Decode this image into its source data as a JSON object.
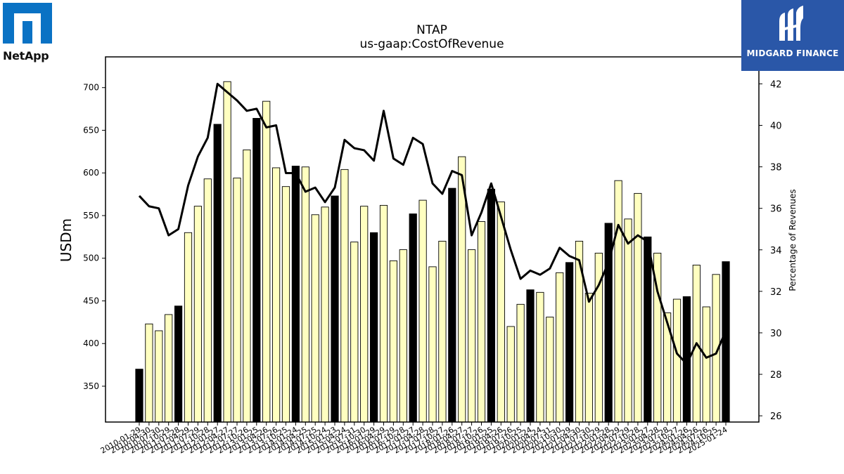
{
  "logos": {
    "left": {
      "text": "NetApp",
      "color": "#0a72c4"
    },
    "right": {
      "text": "MIDGARD FINANCE",
      "color": "#2a57a8"
    }
  },
  "chart_data": {
    "type": "bar",
    "title": "NTAP",
    "subtitle": "us-gaap:CostOfRevenue",
    "ylabel": "USDm",
    "y2label": "Percentage of Revenues",
    "ylim": [
      308,
      736
    ],
    "y2lim": [
      25.7,
      43.3
    ],
    "yticks": [
      350,
      400,
      450,
      500,
      550,
      600,
      650,
      700
    ],
    "y2ticks": [
      26,
      28,
      30,
      32,
      34,
      36,
      38,
      40,
      42
    ],
    "xtick_labels": [
      "2010-01-29",
      "2010-04-30",
      "2010-07-30",
      "2010-10-29",
      "2011-01-28",
      "2011-04-29",
      "2011-07-29",
      "2011-10-28",
      "2012-01-27",
      "2012-04-27",
      "2012-07-27",
      "2012-10-26",
      "2013-01-25",
      "2013-04-26",
      "2013-07-26",
      "2013-10-25",
      "2014-01-24",
      "2014-04-25",
      "2014-07-25",
      "2014-10-24",
      "2015-01-23",
      "2015-04-24",
      "2015-07-31",
      "2015-10-30",
      "2016-01-29",
      "2016-04-29",
      "2016-07-29",
      "2016-10-28",
      "2017-01-27",
      "2017-04-28",
      "2017-07-28",
      "2017-10-27",
      "2018-01-26",
      "2018-04-27",
      "2018-07-27",
      "2018-10-26",
      "2019-01-25",
      "2019-04-26",
      "2019-07-26",
      "2019-10-25",
      "2020-01-24",
      "2020-04-24",
      "2020-07-31",
      "2020-10-30",
      "2021-01-29",
      "2021-04-30",
      "2021-07-30",
      "2021-10-29",
      "2022-01-28",
      "2022-04-29",
      "2022-07-29",
      "2022-10-28",
      "2023-01-27",
      "2023-04-28",
      "2023-07-28",
      "2023-10-27",
      "2024-01-26",
      "2024-04-26",
      "2024-07-26",
      "2024-10-25",
      "2025-01-24"
    ],
    "series": [
      {
        "kind": "bar",
        "values": [
          370,
          423,
          415,
          434,
          444,
          530,
          561,
          593,
          657,
          707,
          594,
          627,
          664,
          684,
          606,
          584,
          608,
          607,
          551,
          560,
          573,
          604,
          519,
          561,
          530,
          562,
          497,
          510,
          552,
          568,
          490,
          520,
          582,
          619,
          510,
          543,
          581,
          566,
          420,
          446,
          463,
          460,
          431,
          483,
          495,
          520,
          459,
          506,
          541,
          591,
          546,
          576,
          525,
          506,
          436,
          452,
          455,
          492,
          443,
          481,
          496
        ],
        "highlight_indices": [
          0,
          4,
          8,
          12,
          16,
          20,
          24,
          28,
          32,
          36,
          40,
          44,
          48,
          52,
          56,
          60
        ],
        "color": "#ffffc0",
        "highlight_color": "#000000"
      },
      {
        "kind": "line",
        "axis": "right",
        "values": [
          36.6,
          36.1,
          36.0,
          34.7,
          35.0,
          37.1,
          38.5,
          39.4,
          42.0,
          41.6,
          41.2,
          40.7,
          40.8,
          39.9,
          40.0,
          37.7,
          37.7,
          36.8,
          37.0,
          36.3,
          37.0,
          39.3,
          38.9,
          38.8,
          38.3,
          40.7,
          38.4,
          38.1,
          39.4,
          39.1,
          37.2,
          36.7,
          37.8,
          37.6,
          34.7,
          35.8,
          37.2,
          35.6,
          34.0,
          32.6,
          33.0,
          32.8,
          33.1,
          34.1,
          33.7,
          33.5,
          31.5,
          32.3,
          33.4,
          35.2,
          34.3,
          34.7,
          34.4,
          32.0,
          30.5,
          29.0,
          28.5,
          29.5,
          28.8,
          29.0,
          30.1
        ],
        "color": "#000000"
      }
    ],
    "grid": false
  }
}
